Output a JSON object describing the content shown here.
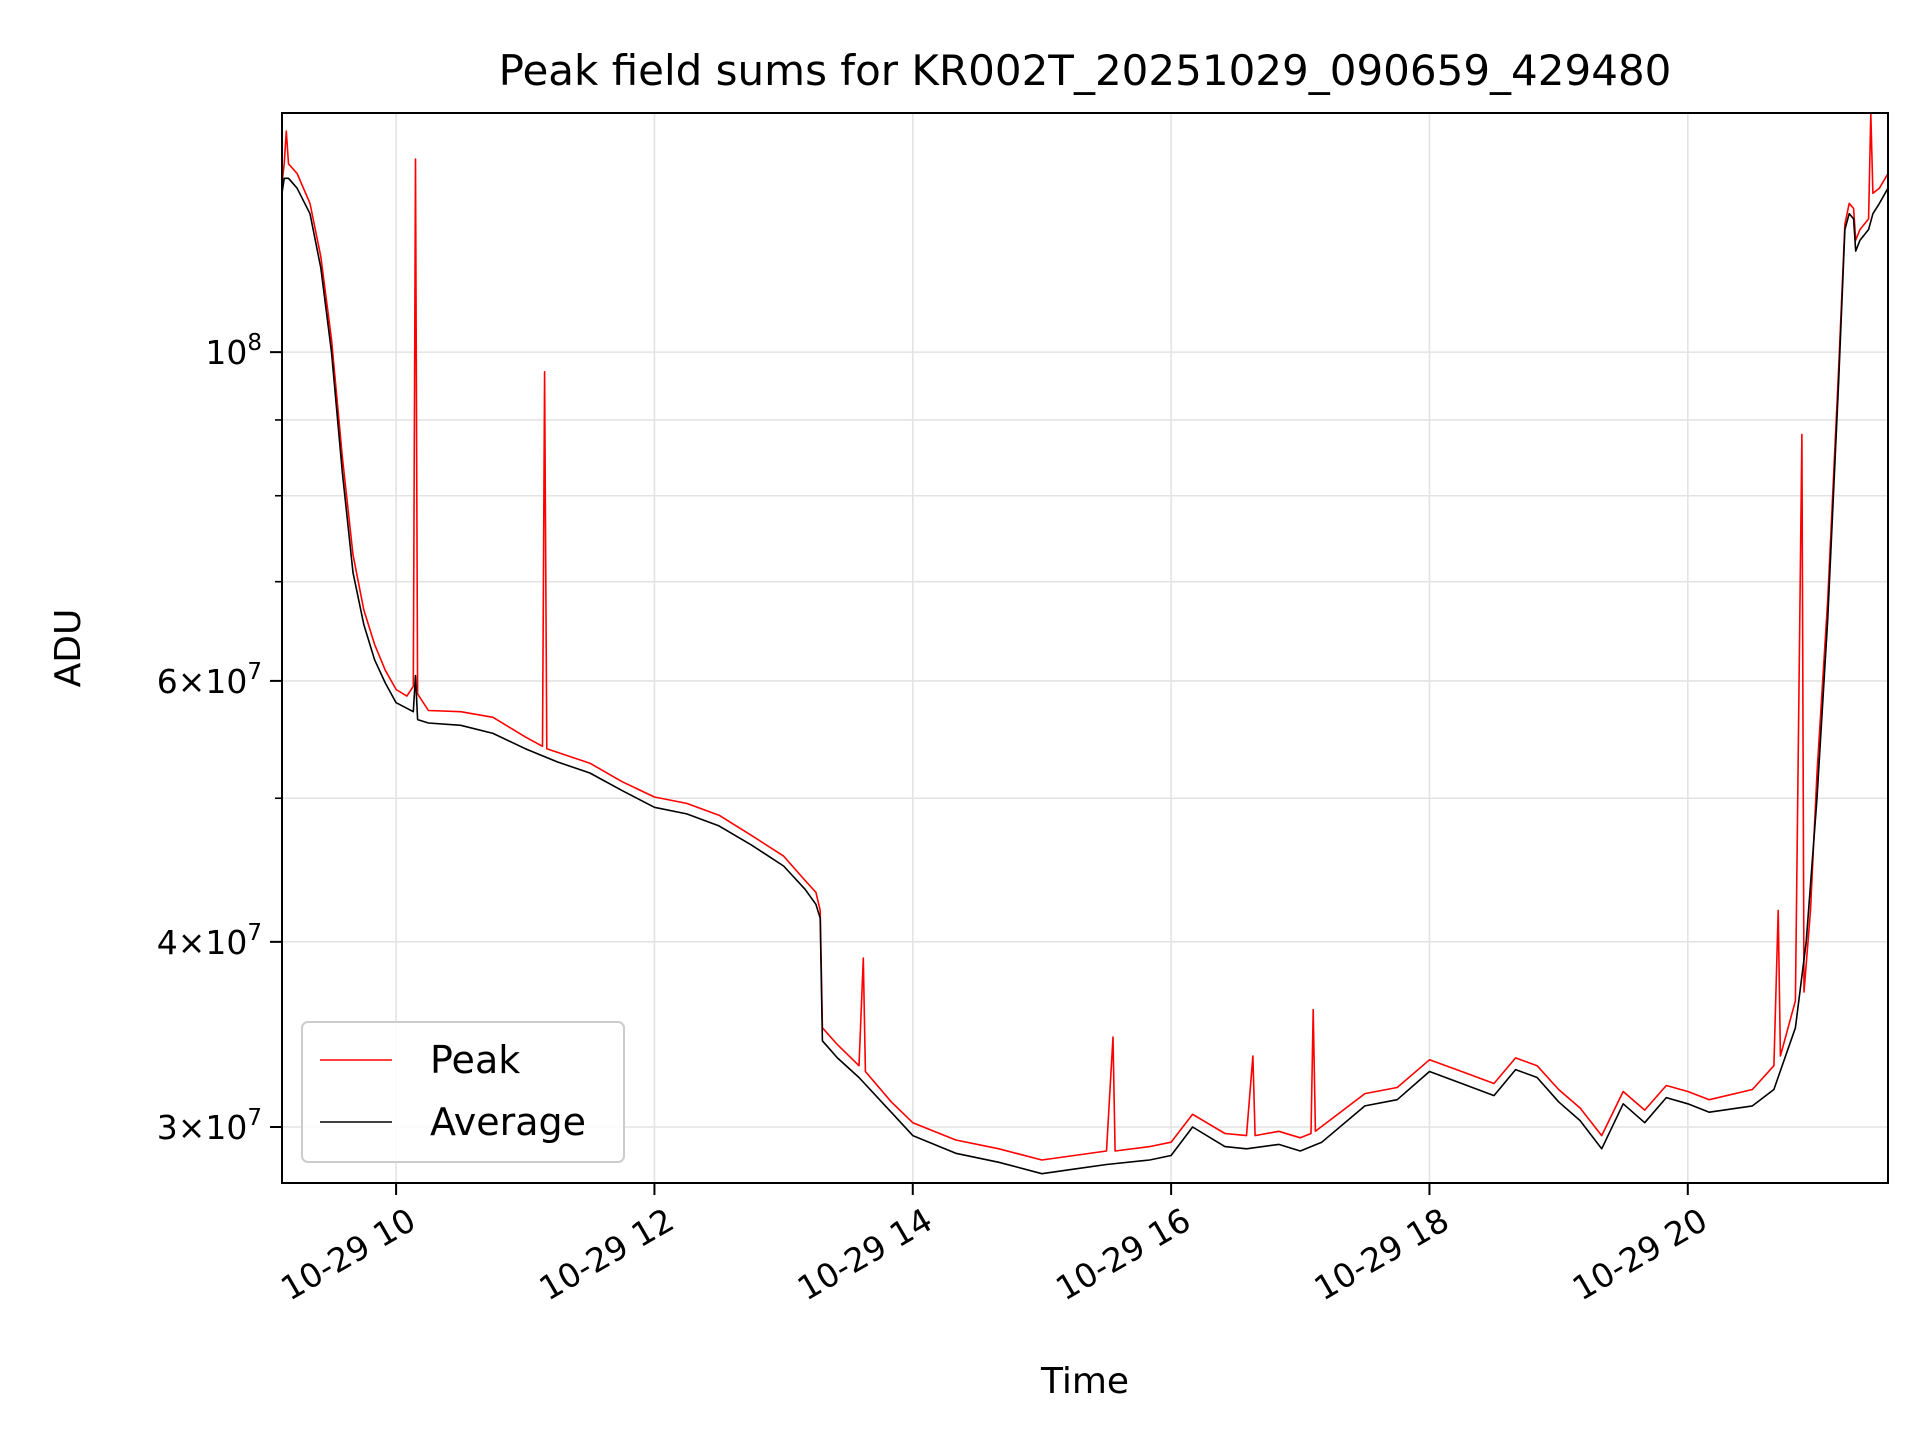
{
  "chart_data": {
    "type": "line",
    "title": "Peak field sums for KR002T_20251029_090659_429480",
    "xlabel": "Time",
    "ylabel": "ADU",
    "y_scale": "log",
    "xlim": [
      "2025-10-29 09:07",
      "2025-10-29 21:33"
    ],
    "ylim": [
      27500000,
      145000000
    ],
    "grid": true,
    "legend_position": "lower-left",
    "x_ticks": [
      "2025-10-29 10:00",
      "2025-10-29 12:00",
      "2025-10-29 14:00",
      "2025-10-29 16:00",
      "2025-10-29 18:00",
      "2025-10-29 20:00"
    ],
    "x_tick_labels": [
      "10-29 10",
      "10-29 12",
      "10-29 14",
      "10-29 16",
      "10-29 18",
      "10-29 20"
    ],
    "y_ticks": [
      {
        "value": 100000000,
        "mantissa": "",
        "exponent": "8"
      },
      {
        "value": 60000000,
        "mantissa": "6",
        "exponent": "7"
      },
      {
        "value": 40000000,
        "mantissa": "4",
        "exponent": "7"
      },
      {
        "value": 30000000,
        "mantissa": "3",
        "exponent": "7"
      }
    ],
    "y_minor_ticks": [
      50000000,
      70000000,
      80000000,
      90000000
    ],
    "series": [
      {
        "name": "Peak",
        "color": "#ff0000",
        "points": [
          [
            "09:07",
            130000000
          ],
          [
            "09:08",
            134000000
          ],
          [
            "09:09",
            141000000
          ],
          [
            "09:10",
            134000000
          ],
          [
            "09:14",
            132000000
          ],
          [
            "09:20",
            126000000
          ],
          [
            "09:25",
            116000000
          ],
          [
            "09:30",
            102000000
          ],
          [
            "09:35",
            85000000
          ],
          [
            "09:40",
            73000000
          ],
          [
            "09:45",
            67000000
          ],
          [
            "09:50",
            63500000
          ],
          [
            "09:55",
            61000000
          ],
          [
            "10:00",
            59200000
          ],
          [
            "10:05",
            58600000
          ],
          [
            "10:08",
            59500000
          ],
          [
            "10:09",
            135000000
          ],
          [
            "10:10",
            58800000
          ],
          [
            "10:15",
            57300000
          ],
          [
            "10:30",
            57200000
          ],
          [
            "10:45",
            56700000
          ],
          [
            "11:00",
            55000000
          ],
          [
            "11:08",
            54200000
          ],
          [
            "11:09",
            97000000
          ],
          [
            "11:10",
            54000000
          ],
          [
            "11:30",
            52800000
          ],
          [
            "11:45",
            51300000
          ],
          [
            "12:00",
            50100000
          ],
          [
            "12:15",
            49600000
          ],
          [
            "12:30",
            48700000
          ],
          [
            "12:45",
            47200000
          ],
          [
            "13:00",
            45700000
          ],
          [
            "13:10",
            44000000
          ],
          [
            "13:15",
            43200000
          ],
          [
            "13:17",
            42000000
          ],
          [
            "13:18",
            35000000
          ],
          [
            "13:25",
            34100000
          ],
          [
            "13:35",
            33000000
          ],
          [
            "13:37",
            39000000
          ],
          [
            "13:38",
            32700000
          ],
          [
            "13:50",
            31200000
          ],
          [
            "14:00",
            30200000
          ],
          [
            "14:20",
            29400000
          ],
          [
            "14:40",
            29000000
          ],
          [
            "15:00",
            28500000
          ],
          [
            "15:15",
            28700000
          ],
          [
            "15:30",
            28900000
          ],
          [
            "15:33",
            34500000
          ],
          [
            "15:34",
            28900000
          ],
          [
            "15:50",
            29100000
          ],
          [
            "16:00",
            29300000
          ],
          [
            "16:10",
            30600000
          ],
          [
            "16:25",
            29700000
          ],
          [
            "16:35",
            29600000
          ],
          [
            "16:38",
            33500000
          ],
          [
            "16:39",
            29600000
          ],
          [
            "16:50",
            29800000
          ],
          [
            "17:00",
            29500000
          ],
          [
            "17:05",
            29700000
          ],
          [
            "17:06",
            36000000
          ],
          [
            "17:07",
            29800000
          ],
          [
            "17:30",
            31600000
          ],
          [
            "17:45",
            31900000
          ],
          [
            "18:00",
            33300000
          ],
          [
            "18:15",
            32700000
          ],
          [
            "18:30",
            32100000
          ],
          [
            "18:40",
            33400000
          ],
          [
            "18:50",
            33000000
          ],
          [
            "19:00",
            31800000
          ],
          [
            "19:10",
            30900000
          ],
          [
            "19:20",
            29600000
          ],
          [
            "19:30",
            31700000
          ],
          [
            "19:40",
            30800000
          ],
          [
            "19:50",
            32000000
          ],
          [
            "20:00",
            31700000
          ],
          [
            "20:10",
            31300000
          ],
          [
            "20:30",
            31800000
          ],
          [
            "20:40",
            33000000
          ],
          [
            "20:42",
            42000000
          ],
          [
            "20:43",
            33500000
          ],
          [
            "20:50",
            36500000
          ],
          [
            "20:53",
            88000000
          ],
          [
            "20:54",
            37000000
          ],
          [
            "20:57",
            42000000
          ],
          [
            "21:00",
            52000000
          ],
          [
            "21:05",
            68000000
          ],
          [
            "21:10",
            97000000
          ],
          [
            "21:13",
            122000000
          ],
          [
            "21:15",
            126000000
          ],
          [
            "21:17",
            125000000
          ],
          [
            "21:18",
            119000000
          ],
          [
            "21:20",
            121000000
          ],
          [
            "21:24",
            123000000
          ],
          [
            "21:25",
            145000000
          ],
          [
            "21:26",
            128000000
          ],
          [
            "21:29",
            129000000
          ],
          [
            "21:33",
            132000000
          ]
        ]
      },
      {
        "name": "Average",
        "color": "#000000",
        "points": [
          [
            "09:07",
            128000000
          ],
          [
            "09:08",
            131000000
          ],
          [
            "09:10",
            131000000
          ],
          [
            "09:14",
            129000000
          ],
          [
            "09:20",
            124000000
          ],
          [
            "09:25",
            114000000
          ],
          [
            "09:30",
            100000000
          ],
          [
            "09:35",
            83000000
          ],
          [
            "09:40",
            71000000
          ],
          [
            "09:45",
            65500000
          ],
          [
            "09:50",
            62000000
          ],
          [
            "09:55",
            59800000
          ],
          [
            "10:00",
            58000000
          ],
          [
            "10:05",
            57500000
          ],
          [
            "10:08",
            57200000
          ],
          [
            "10:09",
            60500000
          ],
          [
            "10:10",
            56500000
          ],
          [
            "10:15",
            56200000
          ],
          [
            "10:30",
            56000000
          ],
          [
            "10:45",
            55300000
          ],
          [
            "11:00",
            54000000
          ],
          [
            "11:15",
            52900000
          ],
          [
            "11:30",
            52000000
          ],
          [
            "11:45",
            50600000
          ],
          [
            "12:00",
            49300000
          ],
          [
            "12:15",
            48800000
          ],
          [
            "12:30",
            47900000
          ],
          [
            "12:45",
            46500000
          ],
          [
            "13:00",
            45000000
          ],
          [
            "13:10",
            43400000
          ],
          [
            "13:15",
            42400000
          ],
          [
            "13:17",
            41500000
          ],
          [
            "13:18",
            34300000
          ],
          [
            "13:25",
            33400000
          ],
          [
            "13:35",
            32400000
          ],
          [
            "13:50",
            30700000
          ],
          [
            "14:00",
            29600000
          ],
          [
            "14:20",
            28800000
          ],
          [
            "14:40",
            28400000
          ],
          [
            "15:00",
            27900000
          ],
          [
            "15:15",
            28100000
          ],
          [
            "15:30",
            28300000
          ],
          [
            "15:50",
            28500000
          ],
          [
            "16:00",
            28700000
          ],
          [
            "16:10",
            30000000
          ],
          [
            "16:25",
            29100000
          ],
          [
            "16:35",
            29000000
          ],
          [
            "16:50",
            29200000
          ],
          [
            "17:00",
            28900000
          ],
          [
            "17:10",
            29300000
          ],
          [
            "17:30",
            31000000
          ],
          [
            "17:45",
            31300000
          ],
          [
            "18:00",
            32700000
          ],
          [
            "18:15",
            32100000
          ],
          [
            "18:30",
            31500000
          ],
          [
            "18:40",
            32800000
          ],
          [
            "18:50",
            32400000
          ],
          [
            "19:00",
            31200000
          ],
          [
            "19:10",
            30300000
          ],
          [
            "19:20",
            29000000
          ],
          [
            "19:30",
            31100000
          ],
          [
            "19:40",
            30200000
          ],
          [
            "19:50",
            31400000
          ],
          [
            "20:00",
            31100000
          ],
          [
            "20:10",
            30700000
          ],
          [
            "20:30",
            31000000
          ],
          [
            "20:40",
            31800000
          ],
          [
            "20:50",
            35000000
          ],
          [
            "20:55",
            40000000
          ],
          [
            "21:00",
            50000000
          ],
          [
            "21:05",
            66000000
          ],
          [
            "21:10",
            95000000
          ],
          [
            "21:13",
            121000000
          ],
          [
            "21:15",
            124000000
          ],
          [
            "21:17",
            123000000
          ],
          [
            "21:18",
            117000000
          ],
          [
            "21:20",
            119000000
          ],
          [
            "21:24",
            121000000
          ],
          [
            "21:26",
            124000000
          ],
          [
            "21:29",
            126000000
          ],
          [
            "21:33",
            129000000
          ]
        ]
      }
    ]
  }
}
